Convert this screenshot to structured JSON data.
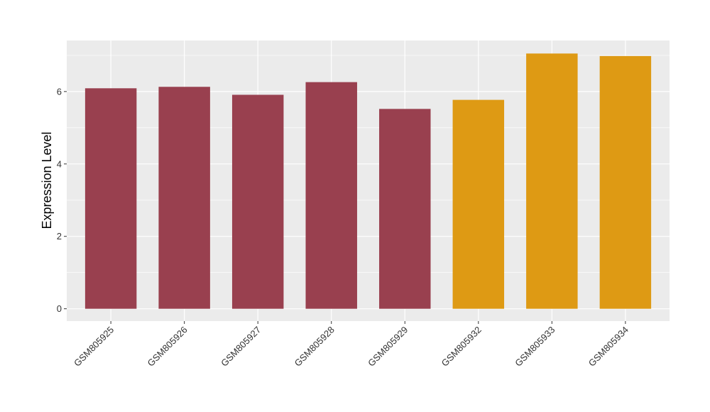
{
  "chart_data": {
    "type": "bar",
    "title": "",
    "xlabel": "",
    "ylabel": "Expression Level",
    "categories": [
      "GSM805925",
      "GSM805926",
      "GSM805927",
      "GSM805928",
      "GSM805929",
      "GSM805932",
      "GSM805933",
      "GSM805934"
    ],
    "values": [
      6.09,
      6.13,
      5.91,
      6.26,
      5.52,
      5.77,
      7.05,
      6.98
    ],
    "bar_colors": [
      "#99404f",
      "#99404f",
      "#99404f",
      "#99404f",
      "#99404f",
      "#de9a14",
      "#de9a14",
      "#de9a14"
    ],
    "yticks": [
      0,
      2,
      4,
      6
    ],
    "ylim": [
      -0.34,
      7.41
    ],
    "grid": true,
    "legend": "none"
  },
  "colors": {
    "panel_background": "#ebebeb",
    "grid_line": "#ffffff"
  }
}
